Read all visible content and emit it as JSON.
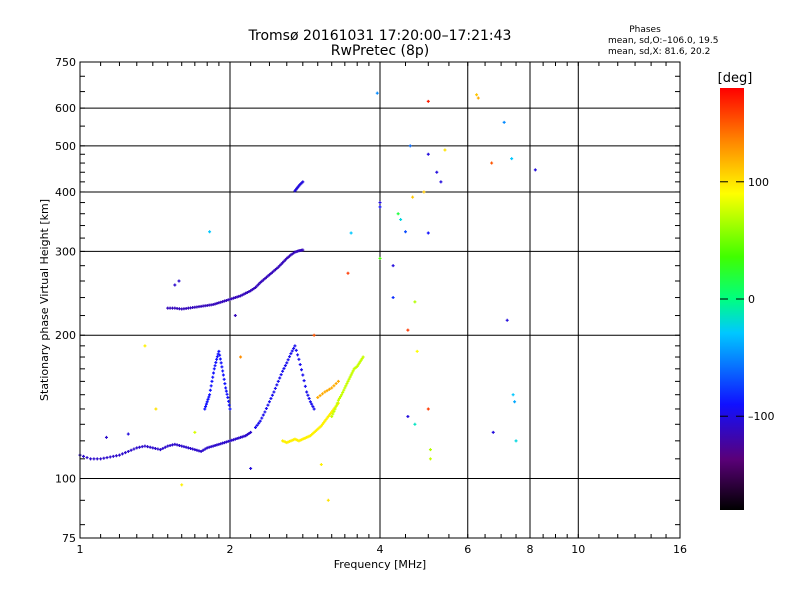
{
  "chart_data": {
    "type": "scatter",
    "title": "Tromsø 20161031 17:20:00–17:21:43",
    "subtitle": "RwPretec (8p)",
    "xlabel": "Frequency [MHz]",
    "ylabel": "Stationary phase Virtual Height [km]",
    "x_scale": "log",
    "y_scale": "log",
    "xlim": [
      1,
      16
    ],
    "ylim": [
      75,
      750
    ],
    "x_ticks": [
      1,
      2,
      4,
      6,
      8,
      10,
      16
    ],
    "x_tick_labels": [
      "1",
      "2",
      "4",
      "6",
      "8",
      "10",
      "16"
    ],
    "y_ticks": [
      75,
      100,
      200,
      300,
      400,
      500,
      600,
      750
    ],
    "y_tick_labels": [
      "75",
      "100",
      "200",
      "300",
      "400",
      "500",
      "600",
      "750"
    ],
    "grid": true,
    "phase_info": {
      "heading": "Phases",
      "line1": "mean, sd,O:–106.0, 19.5",
      "line2": "mean, sd,X:  81.6, 20.2"
    },
    "colorbar": {
      "label": "[deg]",
      "range": [
        -180,
        180
      ],
      "ticks": [
        100,
        0,
        -100
      ],
      "tick_labels": [
        "100",
        "0",
        "–100"
      ]
    },
    "traces": [
      {
        "x": [
          1.0,
          1.05,
          1.1,
          1.15,
          1.2,
          1.25,
          1.3,
          1.35,
          1.4,
          1.45,
          1.5,
          1.55,
          1.6,
          1.65,
          1.7,
          1.75,
          1.8,
          1.85,
          1.9,
          1.95,
          2.0,
          2.05,
          2.1,
          2.15,
          2.2
        ],
        "y": [
          112,
          110,
          110,
          111,
          112,
          114,
          116,
          117,
          116,
          115,
          117,
          118,
          117,
          116,
          115,
          114,
          116,
          117,
          118,
          119,
          120,
          121,
          122,
          123,
          125
        ],
        "phase": -115
      },
      {
        "x": [
          2.25,
          2.3,
          2.35,
          2.4,
          2.45,
          2.5,
          2.55,
          2.6,
          2.65,
          2.7,
          2.75,
          2.8,
          2.85,
          2.9,
          2.95
        ],
        "y": [
          128,
          132,
          138,
          145,
          152,
          160,
          168,
          175,
          183,
          190,
          178,
          165,
          152,
          145,
          140
        ],
        "phase": -105
      },
      {
        "x": [
          1.5,
          1.55,
          1.6,
          1.65,
          1.7,
          1.75,
          1.8,
          1.85,
          1.9,
          1.95,
          2.0,
          2.05,
          2.1,
          2.15,
          2.2,
          2.25,
          2.3,
          2.35,
          2.4,
          2.45,
          2.5,
          2.55,
          2.6,
          2.65,
          2.7,
          2.75,
          2.8
        ],
        "y": [
          228,
          228,
          227,
          228,
          229,
          230,
          231,
          232,
          234,
          236,
          238,
          240,
          242,
          245,
          248,
          252,
          258,
          263,
          268,
          273,
          278,
          284,
          290,
          295,
          299,
          301,
          302
        ],
        "phase": -120
      },
      {
        "x": [
          1.78,
          1.8,
          1.82,
          1.84,
          1.86,
          1.88,
          1.9,
          1.92,
          1.94,
          1.96,
          1.98,
          2.0
        ],
        "y": [
          140,
          145,
          150,
          160,
          170,
          178,
          185,
          175,
          165,
          155,
          148,
          140
        ],
        "phase": -100
      },
      {
        "x": [
          2.7,
          2.73,
          2.76,
          2.8
        ],
        "y": [
          402,
          408,
          414,
          420
        ],
        "phase": -110
      },
      {
        "x": [
          2.55,
          2.6,
          2.65,
          2.7,
          2.75,
          2.8,
          2.85,
          2.9,
          2.95,
          3.0,
          3.05,
          3.1,
          3.15,
          3.2,
          3.25,
          3.3
        ],
        "y": [
          120,
          119,
          120,
          121,
          120,
          121,
          122,
          123,
          125,
          127,
          129,
          132,
          135,
          138,
          141,
          144
        ],
        "phase": 95
      },
      {
        "x": [
          3.2,
          3.25,
          3.3,
          3.35,
          3.4,
          3.45,
          3.5,
          3.55,
          3.6,
          3.65,
          3.7
        ],
        "y": [
          135,
          140,
          146,
          150,
          155,
          160,
          165,
          170,
          172,
          176,
          180
        ],
        "phase": 75
      },
      {
        "x": [
          3.0,
          3.1,
          3.2,
          3.3
        ],
        "y": [
          148,
          152,
          155,
          160
        ],
        "phase": 120
      }
    ],
    "points": [
      {
        "x": 1.13,
        "y": 122,
        "phase": -115
      },
      {
        "x": 1.25,
        "y": 124,
        "phase": -110
      },
      {
        "x": 1.35,
        "y": 190,
        "phase": 95
      },
      {
        "x": 1.42,
        "y": 140,
        "phase": 100
      },
      {
        "x": 1.55,
        "y": 255,
        "phase": -115
      },
      {
        "x": 1.58,
        "y": 260,
        "phase": -115
      },
      {
        "x": 1.6,
        "y": 97,
        "phase": 95
      },
      {
        "x": 1.7,
        "y": 125,
        "phase": 80
      },
      {
        "x": 1.82,
        "y": 330,
        "phase": -40
      },
      {
        "x": 2.05,
        "y": 220,
        "phase": -120
      },
      {
        "x": 2.1,
        "y": 180,
        "phase": 130
      },
      {
        "x": 2.2,
        "y": 105,
        "phase": -110
      },
      {
        "x": 2.95,
        "y": 200,
        "phase": 150
      },
      {
        "x": 3.05,
        "y": 107,
        "phase": 95
      },
      {
        "x": 3.15,
        "y": 90,
        "phase": 100
      },
      {
        "x": 3.45,
        "y": 270,
        "phase": 160
      },
      {
        "x": 3.5,
        "y": 328,
        "phase": -40
      },
      {
        "x": 3.95,
        "y": 645,
        "phase": -60
      },
      {
        "x": 4.0,
        "y": 380,
        "phase": -110
      },
      {
        "x": 4.0,
        "y": 372,
        "phase": -100
      },
      {
        "x": 4.0,
        "y": 290,
        "phase": 40
      },
      {
        "x": 4.25,
        "y": 280,
        "phase": -110
      },
      {
        "x": 4.25,
        "y": 240,
        "phase": -90
      },
      {
        "x": 4.35,
        "y": 360,
        "phase": 20
      },
      {
        "x": 4.4,
        "y": 350,
        "phase": -30
      },
      {
        "x": 4.5,
        "y": 330,
        "phase": -80
      },
      {
        "x": 4.55,
        "y": 205,
        "phase": 160
      },
      {
        "x": 4.6,
        "y": 500,
        "phase": -70
      },
      {
        "x": 4.65,
        "y": 390,
        "phase": 110
      },
      {
        "x": 4.7,
        "y": 235,
        "phase": 70
      },
      {
        "x": 4.75,
        "y": 185,
        "phase": 90
      },
      {
        "x": 4.55,
        "y": 135,
        "phase": -110
      },
      {
        "x": 4.7,
        "y": 130,
        "phase": -20
      },
      {
        "x": 4.9,
        "y": 400,
        "phase": 110
      },
      {
        "x": 5.0,
        "y": 480,
        "phase": -110
      },
      {
        "x": 5.0,
        "y": 328,
        "phase": -100
      },
      {
        "x": 5.0,
        "y": 140,
        "phase": 160
      },
      {
        "x": 5.05,
        "y": 115,
        "phase": 70
      },
      {
        "x": 5.05,
        "y": 110,
        "phase": 75
      },
      {
        "x": 5.0,
        "y": 620,
        "phase": 170
      },
      {
        "x": 5.2,
        "y": 440,
        "phase": -110
      },
      {
        "x": 5.3,
        "y": 420,
        "phase": -110
      },
      {
        "x": 5.4,
        "y": 490,
        "phase": 100
      },
      {
        "x": 6.25,
        "y": 640,
        "phase": 110
      },
      {
        "x": 6.3,
        "y": 630,
        "phase": 120
      },
      {
        "x": 6.7,
        "y": 460,
        "phase": 150
      },
      {
        "x": 6.75,
        "y": 125,
        "phase": -110
      },
      {
        "x": 7.1,
        "y": 560,
        "phase": -60
      },
      {
        "x": 7.2,
        "y": 215,
        "phase": -110
      },
      {
        "x": 7.35,
        "y": 470,
        "phase": -40
      },
      {
        "x": 7.4,
        "y": 150,
        "phase": -40
      },
      {
        "x": 7.45,
        "y": 145,
        "phase": -50
      },
      {
        "x": 7.5,
        "y": 120,
        "phase": -30
      },
      {
        "x": 8.2,
        "y": 445,
        "phase": -110
      }
    ]
  }
}
